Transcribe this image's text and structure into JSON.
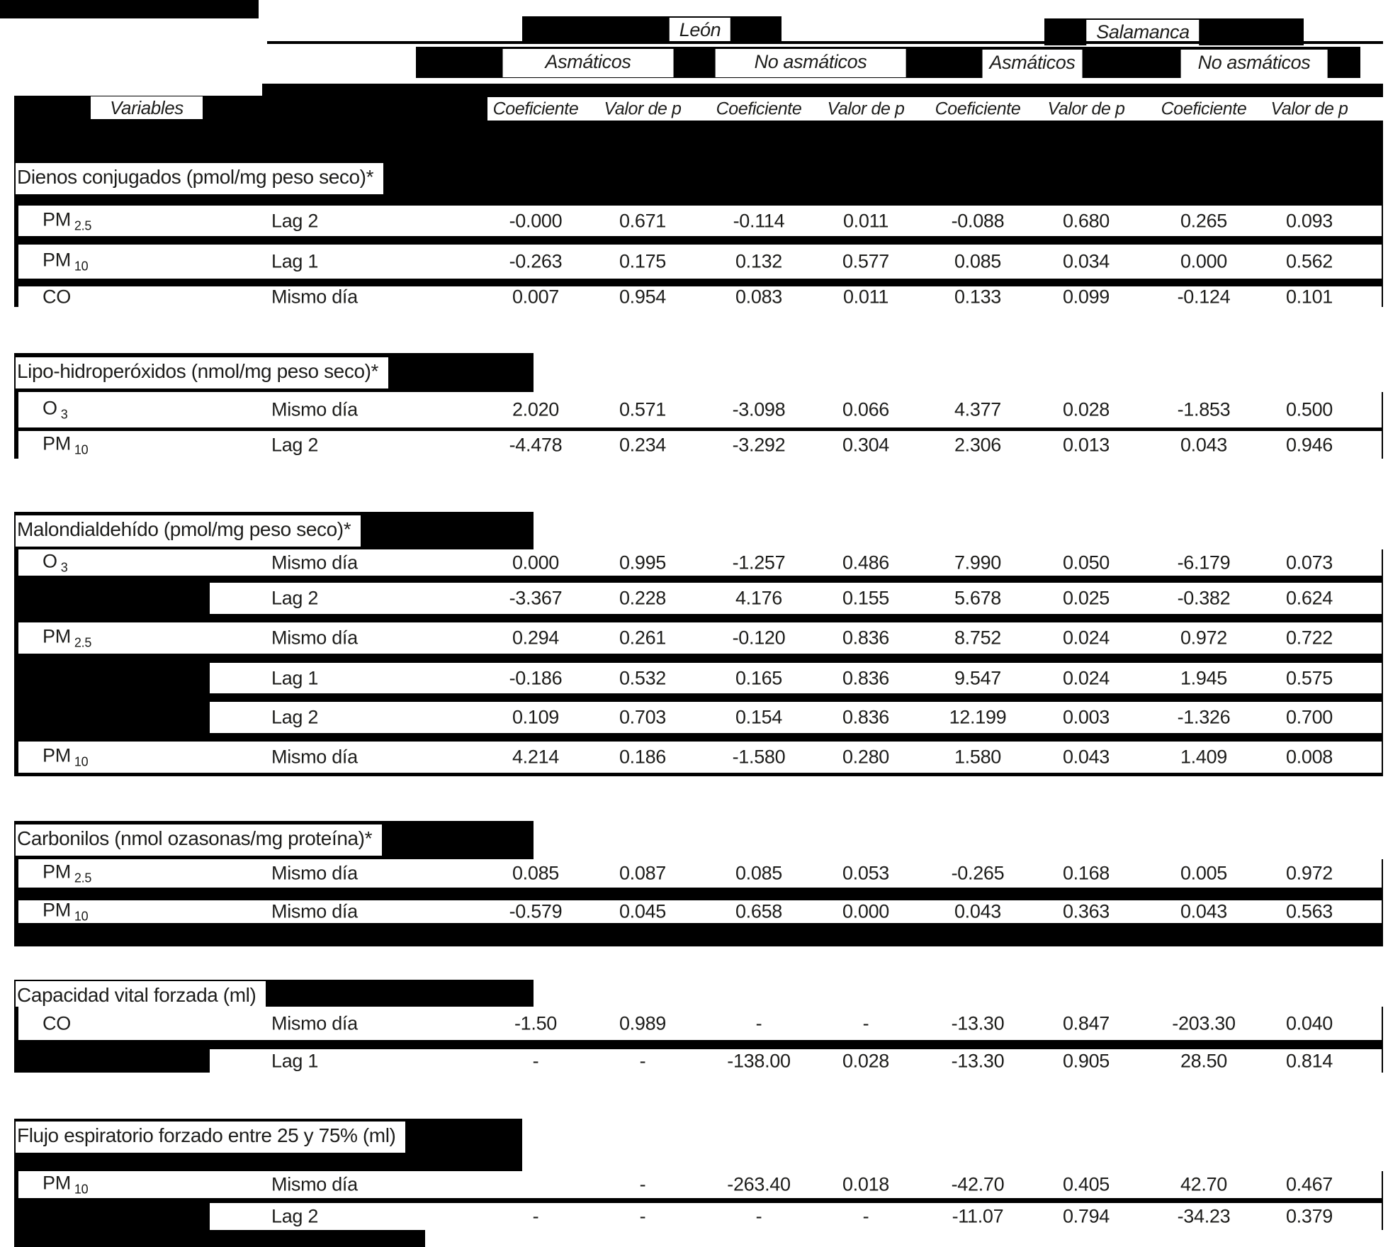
{
  "table": {
    "header": {
      "leon": "León",
      "salamanca": "Salamanca",
      "groups": [
        "Asmáticos",
        "No asmáticos",
        "Asmáticos",
        "No asmáticos"
      ],
      "variables_label": "Variables",
      "col_headers": [
        "Coeficiente",
        "Valor de p",
        "Coeficiente",
        "Valor de p",
        "Coeficiente",
        "Valor de p",
        "Coeficiente",
        "Valor de p"
      ]
    },
    "colors": {
      "block": "#000000",
      "text": "#1d1d1b",
      "page": "#ffffff"
    },
    "chart_data": {
      "type": "table"
    },
    "sections": [
      {
        "title": "Dienos conjugados (pmol/mg peso seco)*",
        "rows": [
          {
            "variable": {
              "base": "PM",
              "sub": "2.5"
            },
            "lag": "Lag 2",
            "values": [
              "-0.000",
              "0.671",
              "-0.114",
              "0.011",
              "-0.088",
              "0.680",
              "0.265",
              "0.093"
            ]
          },
          {
            "variable": {
              "base": "PM",
              "sub": "10"
            },
            "lag": "Lag 1",
            "values": [
              "-0.263",
              "0.175",
              "0.132",
              "0.577",
              "0.085",
              "0.034",
              "0.000",
              "0.562"
            ]
          },
          {
            "variable": {
              "base": "CO",
              "sub": ""
            },
            "lag": "Mismo día",
            "values": [
              "0.007",
              "0.954",
              "0.083",
              "0.011",
              "0.133",
              "0.099",
              "-0.124",
              "0.101"
            ]
          }
        ]
      },
      {
        "title": "Lipo-hidroperóxidos (nmol/mg peso seco)*",
        "rows": [
          {
            "variable": {
              "base": "O",
              "sub": "3"
            },
            "lag": "Mismo día",
            "values": [
              "2.020",
              "0.571",
              "-3.098",
              "0.066",
              "4.377",
              "0.028",
              "-1.853",
              "0.500"
            ]
          },
          {
            "variable": {
              "base": "PM",
              "sub": "10"
            },
            "lag": "Lag 2",
            "values": [
              "-4.478",
              "0.234",
              "-3.292",
              "0.304",
              "2.306",
              "0.013",
              "0.043",
              "0.946"
            ]
          }
        ]
      },
      {
        "title": "Malondialdehído (pmol/mg peso seco)*",
        "rows": [
          {
            "variable": {
              "base": "O",
              "sub": "3"
            },
            "lag": "Mismo día",
            "values": [
              "0.000",
              "0.995",
              "-1.257",
              "0.486",
              "7.990",
              "0.050",
              "-6.179",
              "0.073"
            ]
          },
          {
            "variable": null,
            "lag": "Lag 2",
            "values": [
              "-3.367",
              "0.228",
              "4.176",
              "0.155",
              "5.678",
              "0.025",
              "-0.382",
              "0.624"
            ]
          },
          {
            "variable": {
              "base": "PM",
              "sub": "2.5"
            },
            "lag": "Mismo día",
            "values": [
              "0.294",
              "0.261",
              "-0.120",
              "0.836",
              "8.752",
              "0.024",
              "0.972",
              "0.722"
            ]
          },
          {
            "variable": null,
            "lag": "Lag 1",
            "values": [
              "-0.186",
              "0.532",
              "0.165",
              "0.836",
              "9.547",
              "0.024",
              "1.945",
              "0.575"
            ]
          },
          {
            "variable": null,
            "lag": "Lag 2",
            "values": [
              "0.109",
              "0.703",
              "0.154",
              "0.836",
              "12.199",
              "0.003",
              "-1.326",
              "0.700"
            ]
          },
          {
            "variable": {
              "base": "PM",
              "sub": "10"
            },
            "lag": "Mismo día",
            "values": [
              "4.214",
              "0.186",
              "-1.580",
              "0.280",
              "1.580",
              "0.043",
              "1.409",
              "0.008"
            ]
          }
        ]
      },
      {
        "title": "Carbonilos (nmol ozasonas/mg proteína)*",
        "rows": [
          {
            "variable": {
              "base": "PM",
              "sub": "2.5"
            },
            "lag": "Mismo día",
            "values": [
              "0.085",
              "0.087",
              "0.085",
              "0.053",
              "-0.265",
              "0.168",
              "0.005",
              "0.972"
            ]
          },
          {
            "variable": {
              "base": "PM",
              "sub": "10"
            },
            "lag": "Mismo día",
            "values": [
              "-0.579",
              "0.045",
              "0.658",
              "0.000",
              "0.043",
              "0.363",
              "0.043",
              "0.563"
            ]
          }
        ]
      },
      {
        "title": "Capacidad vital forzada (ml)",
        "rows": [
          {
            "variable": {
              "base": "CO",
              "sub": ""
            },
            "lag": "Mismo día",
            "values": [
              "-1.50",
              "0.989",
              "-",
              "-",
              "-13.30",
              "0.847",
              "-203.30",
              "0.040"
            ]
          },
          {
            "variable": null,
            "lag": "Lag 1",
            "values": [
              "-",
              "-",
              "-138.00",
              "0.028",
              "-13.30",
              "0.905",
              "28.50",
              "0.814"
            ]
          }
        ]
      },
      {
        "title": "Flujo espiratorio forzado entre 25 y 75% (ml)",
        "rows": [
          {
            "variable": {
              "base": "PM",
              "sub": "10"
            },
            "lag": "Mismo día",
            "values": [
              "",
              "-",
              "-263.40",
              "0.018",
              "-42.70",
              "0.405",
              "42.70",
              "0.467"
            ]
          },
          {
            "variable": null,
            "lag": "Lag 2",
            "values": [
              "-",
              "-",
              "-",
              "-",
              "-11.07",
              "0.794",
              "-34.23",
              "0.379"
            ]
          }
        ]
      }
    ]
  }
}
